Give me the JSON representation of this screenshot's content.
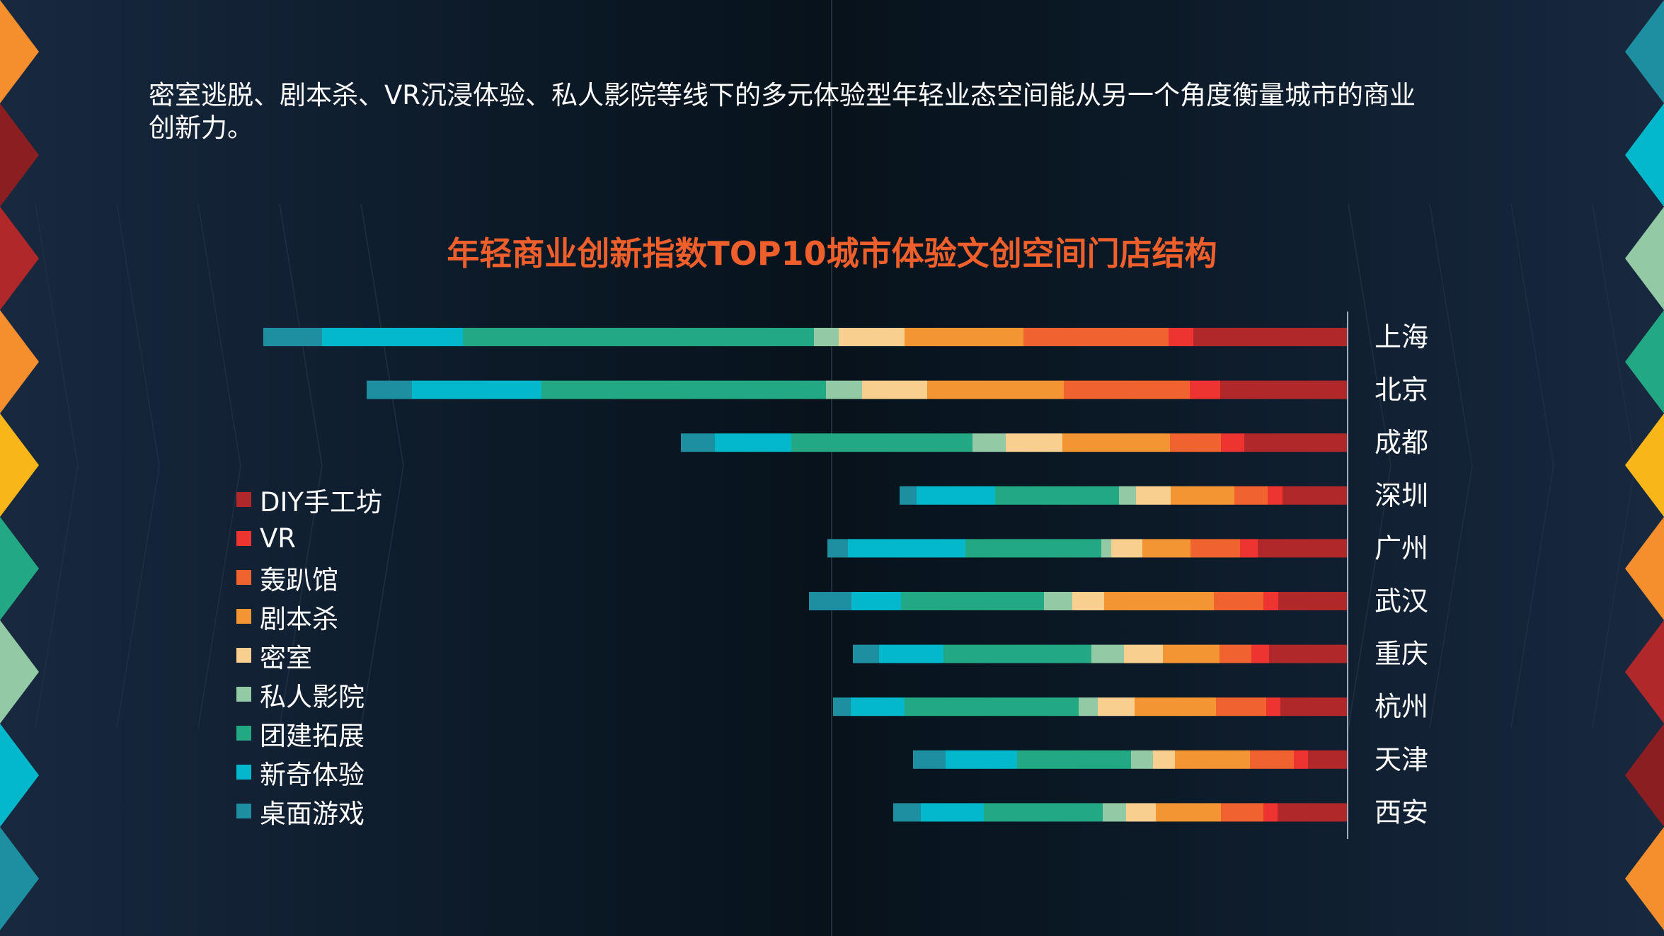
{
  "intro_text": "密室逃脱、剧本杀、VR沉浸体验、私人影院等线下的多元体验型年轻业态空间能从另一个角度衡量城市的商业创新力。",
  "chart_data": {
    "type": "bar",
    "orientation": "horizontal",
    "stacked": true,
    "title": "年轻商业创新指数TOP10城市体验文创空间门店结构",
    "xlabel": "",
    "ylabel": "",
    "categories": [
      "上海",
      "北京",
      "成都",
      "深圳",
      "广州",
      "武汉",
      "重庆",
      "杭州",
      "天津",
      "西安"
    ],
    "series": [
      {
        "name": "DIY手工坊",
        "color": "#b0282a",
        "values": [
          218,
          180,
          146,
          92,
          127,
          98,
          111,
          95,
          56,
          99
        ]
      },
      {
        "name": "VR",
        "color": "#ed3430",
        "values": [
          35,
          43,
          33,
          21,
          25,
          21,
          25,
          20,
          20,
          20
        ]
      },
      {
        "name": "轰趴馆",
        "color": "#f0632f",
        "values": [
          205,
          178,
          72,
          47,
          70,
          70,
          45,
          71,
          62,
          60
        ]
      },
      {
        "name": "剧本杀",
        "color": "#f49533",
        "values": [
          168,
          193,
          152,
          90,
          68,
          155,
          80,
          115,
          106,
          92
        ]
      },
      {
        "name": "密室",
        "color": "#f9cf8f",
        "values": [
          93,
          92,
          80,
          49,
          44,
          45,
          55,
          52,
          31,
          42
        ]
      },
      {
        "name": "私人影院",
        "color": "#93caa5",
        "values": [
          35,
          51,
          47,
          24,
          14,
          40,
          46,
          27,
          31,
          33
        ]
      },
      {
        "name": "团建拓展",
        "color": "#22a983",
        "values": [
          496,
          402,
          256,
          175,
          192,
          202,
          209,
          246,
          161,
          168
        ]
      },
      {
        "name": "新奇体验",
        "color": "#04b8cb",
        "values": [
          199,
          183,
          108,
          111,
          166,
          70,
          91,
          76,
          101,
          89
        ]
      },
      {
        "name": "桌面游戏",
        "color": "#1e8fa1",
        "values": [
          83,
          64,
          48,
          24,
          29,
          60,
          37,
          25,
          46,
          39
        ]
      }
    ],
    "legend_position": "left",
    "grid": false
  }
}
